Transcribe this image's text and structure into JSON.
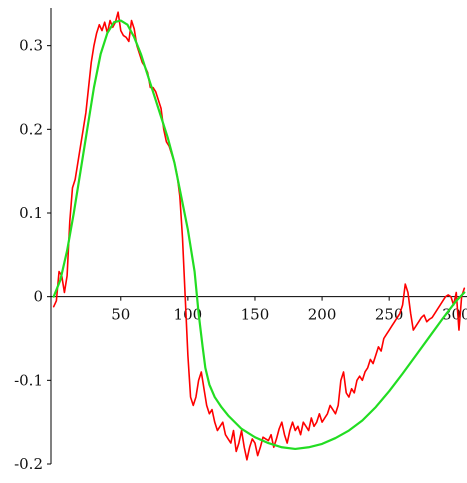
{
  "chart_data": {
    "type": "line",
    "title": "",
    "xlabel": "",
    "ylabel": "",
    "xlim": [
      -2,
      308
    ],
    "ylim": [
      -0.2,
      0.345
    ],
    "grid": false,
    "legend": "none",
    "x_ticks": [
      50,
      100,
      150,
      200,
      250,
      300
    ],
    "x_tick_labels": [
      "50",
      "100",
      "150",
      "200",
      "250",
      "300"
    ],
    "y_ticks": [
      -0.2,
      -0.1,
      0,
      0.1,
      0.2,
      0.3
    ],
    "y_tick_labels": [
      "-0.2",
      "-0.1",
      "0",
      "0.1",
      "0.2",
      "0.3"
    ],
    "series": [
      {
        "color": "#ff0000",
        "x": [
          0,
          2,
          4,
          6,
          8,
          10,
          12,
          14,
          16,
          18,
          20,
          22,
          24,
          26,
          28,
          30,
          32,
          34,
          36,
          38,
          40,
          42,
          44,
          46,
          48,
          50,
          52,
          54,
          56,
          58,
          60,
          62,
          64,
          66,
          68,
          70,
          72,
          74,
          76,
          78,
          80,
          82,
          84,
          86,
          88,
          90,
          92,
          94,
          96,
          98,
          100,
          102,
          104,
          106,
          108,
          110,
          112,
          114,
          116,
          118,
          120,
          122,
          124,
          126,
          128,
          130,
          132,
          134,
          136,
          138,
          140,
          142,
          144,
          146,
          148,
          150,
          152,
          154,
          156,
          158,
          160,
          162,
          164,
          166,
          168,
          170,
          172,
          174,
          176,
          178,
          180,
          182,
          184,
          186,
          188,
          190,
          192,
          194,
          196,
          198,
          200,
          202,
          204,
          206,
          208,
          210,
          212,
          214,
          216,
          218,
          220,
          222,
          224,
          226,
          228,
          230,
          232,
          234,
          236,
          238,
          240,
          242,
          244,
          246,
          248,
          250,
          252,
          254,
          256,
          258,
          260,
          262,
          264,
          266,
          268,
          270,
          272,
          274,
          276,
          278,
          280,
          282,
          284,
          286,
          288,
          290,
          292,
          294,
          296,
          298,
          300,
          302,
          304,
          306
        ],
        "y": [
          -0.012,
          -0.005,
          0.03,
          0.025,
          0.005,
          0.025,
          0.09,
          0.13,
          0.14,
          0.16,
          0.18,
          0.2,
          0.22,
          0.25,
          0.28,
          0.3,
          0.315,
          0.325,
          0.318,
          0.328,
          0.315,
          0.33,
          0.322,
          0.328,
          0.34,
          0.318,
          0.312,
          0.31,
          0.305,
          0.33,
          0.32,
          0.3,
          0.29,
          0.28,
          0.275,
          0.268,
          0.25,
          0.25,
          0.245,
          0.235,
          0.225,
          0.2,
          0.185,
          0.18,
          0.17,
          0.16,
          0.145,
          0.12,
          0.07,
          0.0,
          -0.07,
          -0.12,
          -0.13,
          -0.12,
          -0.1,
          -0.09,
          -0.11,
          -0.13,
          -0.14,
          -0.135,
          -0.15,
          -0.16,
          -0.155,
          -0.15,
          -0.165,
          -0.17,
          -0.175,
          -0.16,
          -0.185,
          -0.175,
          -0.16,
          -0.18,
          -0.195,
          -0.18,
          -0.17,
          -0.175,
          -0.19,
          -0.18,
          -0.168,
          -0.17,
          -0.172,
          -0.165,
          -0.18,
          -0.17,
          -0.158,
          -0.15,
          -0.165,
          -0.175,
          -0.16,
          -0.15,
          -0.16,
          -0.155,
          -0.165,
          -0.15,
          -0.155,
          -0.16,
          -0.145,
          -0.155,
          -0.15,
          -0.14,
          -0.15,
          -0.145,
          -0.14,
          -0.13,
          -0.135,
          -0.14,
          -0.13,
          -0.1,
          -0.09,
          -0.115,
          -0.12,
          -0.11,
          -0.115,
          -0.1,
          -0.095,
          -0.1,
          -0.09,
          -0.085,
          -0.075,
          -0.08,
          -0.07,
          -0.06,
          -0.065,
          -0.05,
          -0.045,
          -0.04,
          -0.035,
          -0.03,
          -0.025,
          -0.02,
          -0.01,
          0.015,
          0.005,
          -0.02,
          -0.04,
          -0.035,
          -0.03,
          -0.025,
          -0.022,
          -0.03,
          -0.027,
          -0.025,
          -0.02,
          -0.015,
          -0.01,
          -0.005,
          0.0,
          0.002,
          0.0,
          -0.01,
          0.005,
          -0.04,
          0.0,
          0.01
        ]
      },
      {
        "color": "#22dd22",
        "x": [
          0,
          5,
          10,
          15,
          20,
          25,
          30,
          35,
          40,
          45,
          50,
          55,
          60,
          65,
          70,
          75,
          80,
          85,
          90,
          95,
          100,
          105,
          108,
          111,
          113,
          116,
          120,
          125,
          130,
          140,
          150,
          160,
          170,
          180,
          190,
          200,
          210,
          220,
          230,
          240,
          250,
          260,
          270,
          280,
          290,
          300,
          306
        ],
        "y": [
          0.0,
          0.02,
          0.055,
          0.1,
          0.15,
          0.2,
          0.25,
          0.29,
          0.315,
          0.328,
          0.33,
          0.325,
          0.31,
          0.29,
          0.265,
          0.24,
          0.215,
          0.19,
          0.16,
          0.12,
          0.08,
          0.03,
          -0.02,
          -0.06,
          -0.085,
          -0.105,
          -0.12,
          -0.132,
          -0.142,
          -0.158,
          -0.168,
          -0.175,
          -0.18,
          -0.182,
          -0.18,
          -0.176,
          -0.169,
          -0.16,
          -0.148,
          -0.132,
          -0.113,
          -0.092,
          -0.07,
          -0.048,
          -0.026,
          -0.005,
          0.005
        ]
      }
    ]
  }
}
